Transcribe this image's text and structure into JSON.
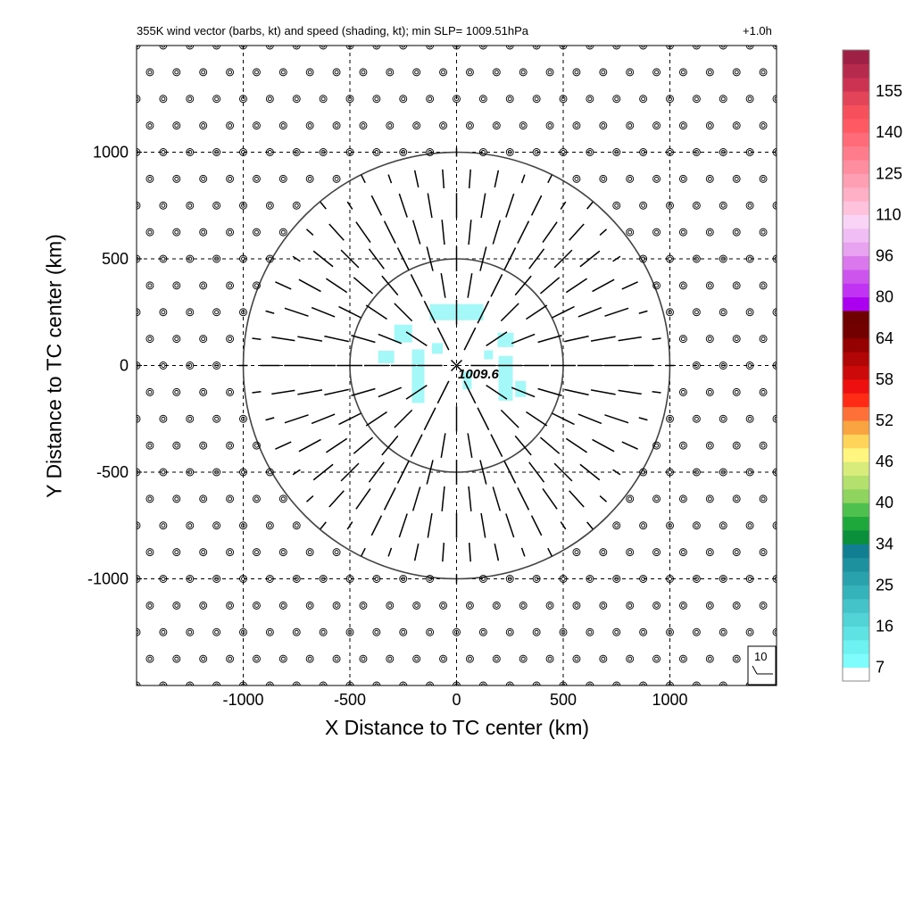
{
  "title_left": "355K wind vector (barbs, kt) and speed (shading, kt); min SLP= 1009.51hPa",
  "title_right": "+1.0h",
  "center_label": "1009.6",
  "legend_barb_label": "10",
  "chart_data": {
    "type": "wind barb plot",
    "title": "355K wind vector (barbs, kt) and speed (shading, kt); min SLP= 1009.51hPa",
    "forecast_time": "+1.0h",
    "xlabel": "X Distance to TC center (km)",
    "ylabel": "Y Distance to TC center (km)",
    "xlim": [
      -1500,
      1500
    ],
    "ylim": [
      -1500,
      1500
    ],
    "x_ticks": [
      -1000,
      -500,
      0,
      500,
      1000
    ],
    "y_ticks": [
      -1000,
      -500,
      0,
      500,
      1000
    ],
    "grid": true,
    "range_rings_km": [
      500,
      1000
    ],
    "center_mark": {
      "x": 0,
      "y": 0,
      "label": "1009.6"
    },
    "colorbar": {
      "ticks": [
        7,
        16,
        25,
        34,
        40,
        46,
        52,
        58,
        64,
        80,
        96,
        110,
        125,
        140,
        155
      ],
      "colors": [
        "#ffffff",
        "#7ffcfc",
        "#6ef1f1",
        "#5fe2e2",
        "#52d3d6",
        "#44c3c8",
        "#35b3bb",
        "#2aa2ad",
        "#1e919f",
        "#117f91",
        "#0a8f3a",
        "#1ea83b",
        "#4dc04e",
        "#8fd45e",
        "#b4e06d",
        "#d8ec7c",
        "#fff57f",
        "#ffd459",
        "#f9a341",
        "#fd7037",
        "#ff2b15",
        "#ee0f0f",
        "#cc0a0a",
        "#b20505",
        "#950000",
        "#730000",
        "#6e0000",
        "#ab00f0",
        "#c033f2",
        "#cd55ee",
        "#dc78ed",
        "#e7a3ef",
        "#f0bdf4",
        "#fad4f6",
        "#ffc2dc",
        "#ffb0c7",
        "#ff9fb3",
        "#ff8da0",
        "#ff7c8c",
        "#ff6b78",
        "#ff5a64",
        "#f5505b",
        "#e44457",
        "#cc3352",
        "#b52a4d",
        "#9e2045"
      ],
      "range": [
        0,
        160
      ]
    },
    "wind_field": {
      "units": "kt",
      "pattern": "radial outflow inside 1000 km; calm (0 kt) elsewhere",
      "barb_grid_spacing_km": 125,
      "sample_barbs": [
        {
          "x": 0,
          "y": 590,
          "speed_kt": 5,
          "direction": "outward"
        },
        {
          "x": 0,
          "y": 960,
          "speed_kt": 0,
          "direction": "calm"
        },
        {
          "x": 640,
          "y": 0,
          "speed_kt": 5,
          "direction": "outward"
        },
        {
          "x": -640,
          "y": 0,
          "speed_kt": 5,
          "direction": "outward"
        },
        {
          "x": 0,
          "y": -590,
          "speed_kt": 5,
          "direction": "outward"
        }
      ]
    },
    "shading_note": "light cyan (7-16 kt) patches near center within 300 km"
  }
}
